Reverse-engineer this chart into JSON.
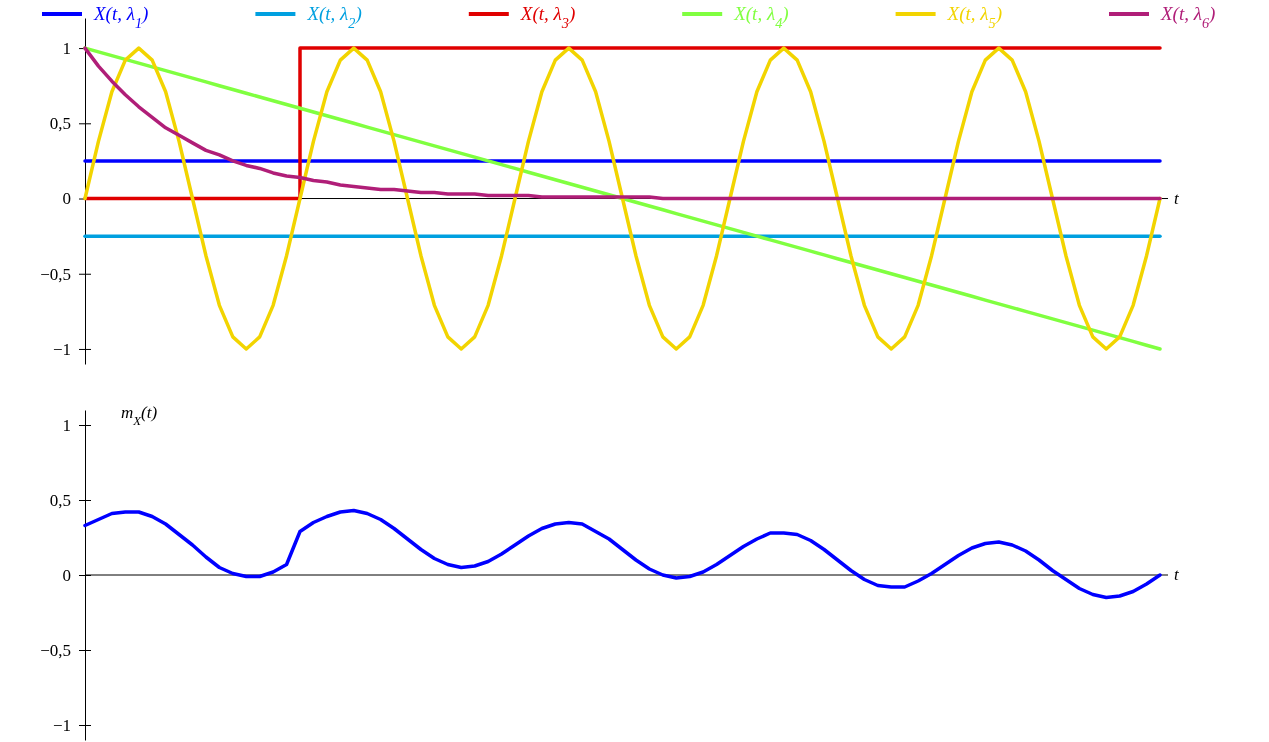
{
  "chart_data": [
    {
      "type": "line",
      "ylim": [
        -1.1,
        1.2
      ],
      "xlabel": "t",
      "tick_labels": "y",
      "legend": "top",
      "categories": [
        null,
        null,
        null,
        null,
        null,
        null,
        null,
        null,
        null,
        null,
        null,
        null,
        null,
        null,
        null,
        null,
        null,
        null,
        null,
        null,
        null,
        null,
        null,
        null,
        null,
        null,
        null,
        null,
        null,
        null,
        null,
        null,
        null,
        null,
        null,
        null,
        null,
        null,
        null,
        null,
        null,
        null,
        null,
        null,
        null,
        null,
        null,
        null,
        null,
        null,
        null,
        null,
        null,
        null,
        null,
        null,
        null,
        null,
        null,
        null,
        null,
        null,
        null,
        null,
        null,
        null,
        null,
        null,
        null,
        null,
        null,
        null,
        null,
        null,
        null,
        null,
        null,
        null,
        null,
        null,
        null
      ],
      "yticks": [
        {
          "value": -1,
          "label": "−1"
        },
        {
          "value": -0.5,
          "label": "−0,5"
        },
        {
          "value": 0,
          "label": "0"
        },
        {
          "value": 0.5,
          "label": "0,5"
        },
        {
          "value": 1,
          "label": "1"
        }
      ],
      "series": [
        {
          "name": "X(t, λ$_{1}$)",
          "color": "#0000ff",
          "values": [
            0.25,
            0.25,
            0.25,
            0.25,
            0.25,
            0.25,
            0.25,
            0.25,
            0.25,
            0.25,
            0.25,
            0.25,
            0.25,
            0.25,
            0.25,
            0.25,
            0.25,
            0.25,
            0.25,
            0.25,
            0.25,
            0.25,
            0.25,
            0.25,
            0.25,
            0.25,
            0.25,
            0.25,
            0.25,
            0.25,
            0.25,
            0.25,
            0.25,
            0.25,
            0.25,
            0.25,
            0.25,
            0.25,
            0.25,
            0.25,
            0.25,
            0.25,
            0.25,
            0.25,
            0.25,
            0.25,
            0.25,
            0.25,
            0.25,
            0.25,
            0.25,
            0.25,
            0.25,
            0.25,
            0.25,
            0.25,
            0.25,
            0.25,
            0.25,
            0.25,
            0.25,
            0.25,
            0.25,
            0.25,
            0.25,
            0.25,
            0.25,
            0.25,
            0.25,
            0.25,
            0.25,
            0.25,
            0.25,
            0.25,
            0.25,
            0.25,
            0.25,
            0.25,
            0.25,
            0.25,
            0.25
          ]
        },
        {
          "name": "X(t, λ$_{2}$)",
          "color": "#00a0e0",
          "values": [
            -0.25,
            -0.25,
            -0.25,
            -0.25,
            -0.25,
            -0.25,
            -0.25,
            -0.25,
            -0.25,
            -0.25,
            -0.25,
            -0.25,
            -0.25,
            -0.25,
            -0.25,
            -0.25,
            -0.25,
            -0.25,
            -0.25,
            -0.25,
            -0.25,
            -0.25,
            -0.25,
            -0.25,
            -0.25,
            -0.25,
            -0.25,
            -0.25,
            -0.25,
            -0.25,
            -0.25,
            -0.25,
            -0.25,
            -0.25,
            -0.25,
            -0.25,
            -0.25,
            -0.25,
            -0.25,
            -0.25,
            -0.25,
            -0.25,
            -0.25,
            -0.25,
            -0.25,
            -0.25,
            -0.25,
            -0.25,
            -0.25,
            -0.25,
            -0.25,
            -0.25,
            -0.25,
            -0.25,
            -0.25,
            -0.25,
            -0.25,
            -0.25,
            -0.25,
            -0.25,
            -0.25,
            -0.25,
            -0.25,
            -0.25,
            -0.25,
            -0.25,
            -0.25,
            -0.25,
            -0.25,
            -0.25,
            -0.25,
            -0.25,
            -0.25,
            -0.25,
            -0.25,
            -0.25,
            -0.25,
            -0.25,
            -0.25,
            -0.25,
            -0.25
          ]
        },
        {
          "name": "X(t, λ$_{3}$)",
          "color": "#e00000",
          "type": "step",
          "values": [
            0,
            0,
            0,
            0,
            0,
            0,
            0,
            0,
            0,
            0,
            0,
            0,
            0,
            0,
            0,
            0,
            1,
            1,
            1,
            1,
            1,
            1,
            1,
            1,
            1,
            1,
            1,
            1,
            1,
            1,
            1,
            1,
            1,
            1,
            1,
            1,
            1,
            1,
            1,
            1,
            1,
            1,
            1,
            1,
            1,
            1,
            1,
            1,
            1,
            1,
            1,
            1,
            1,
            1,
            1,
            1,
            1,
            1,
            1,
            1,
            1,
            1,
            1,
            1,
            1,
            1,
            1,
            1,
            1,
            1,
            1,
            1,
            1,
            1,
            1,
            1,
            1,
            1,
            1,
            1,
            1
          ]
        },
        {
          "name": "X(t, λ$_{4}$)",
          "color": "#80ff40",
          "values": [
            1,
            0.975,
            0.95,
            0.925,
            0.9,
            0.875,
            0.85,
            0.825,
            0.8,
            0.775,
            0.75,
            0.725,
            0.7,
            0.675,
            0.65,
            0.625,
            0.6,
            0.575,
            0.55,
            0.525,
            0.5,
            0.475,
            0.45,
            0.425,
            0.4,
            0.375,
            0.35,
            0.325,
            0.3,
            0.275,
            0.25,
            0.225,
            0.2,
            0.175,
            0.15,
            0.125,
            0.1,
            0.075,
            0.05,
            0.025,
            0,
            -0.025,
            -0.05,
            -0.075,
            -0.1,
            -0.125,
            -0.15,
            -0.175,
            -0.2,
            -0.225,
            -0.25,
            -0.275,
            -0.3,
            -0.325,
            -0.35,
            -0.375,
            -0.4,
            -0.425,
            -0.45,
            -0.475,
            -0.5,
            -0.525,
            -0.55,
            -0.575,
            -0.6,
            -0.625,
            -0.65,
            -0.675,
            -0.7,
            -0.725,
            -0.75,
            -0.775,
            -0.8,
            -0.825,
            -0.85,
            -0.875,
            -0.9,
            -0.925,
            -0.95,
            -0.975,
            -1
          ]
        },
        {
          "name": "X(t, λ$_{5}$)",
          "color": "#f2d400",
          "values": [
            0,
            0.38,
            0.71,
            0.92,
            1,
            0.92,
            0.71,
            0.38,
            0,
            -0.38,
            -0.71,
            -0.92,
            -1,
            -0.92,
            -0.71,
            -0.38,
            0,
            0.38,
            0.71,
            0.92,
            1,
            0.92,
            0.71,
            0.38,
            0,
            -0.38,
            -0.71,
            -0.92,
            -1,
            -0.92,
            -0.71,
            -0.38,
            0,
            0.38,
            0.71,
            0.92,
            1,
            0.92,
            0.71,
            0.38,
            0,
            -0.38,
            -0.71,
            -0.92,
            -1,
            -0.92,
            -0.71,
            -0.38,
            0,
            0.38,
            0.71,
            0.92,
            1,
            0.92,
            0.71,
            0.38,
            0,
            -0.38,
            -0.71,
            -0.92,
            -1,
            -0.92,
            -0.71,
            -0.38,
            0,
            0.38,
            0.71,
            0.92,
            1,
            0.92,
            0.71,
            0.38,
            0,
            -0.38,
            -0.71,
            -0.92,
            -1,
            -0.92,
            -0.71,
            -0.38,
            0
          ]
        },
        {
          "name": "X(t, λ$_{6}$)",
          "color": "#b01e78",
          "values": [
            1,
            0.88,
            0.78,
            0.69,
            0.61,
            0.54,
            0.47,
            0.42,
            0.37,
            0.32,
            0.29,
            0.25,
            0.22,
            0.2,
            0.17,
            0.15,
            0.14,
            0.12,
            0.11,
            0.09,
            0.08,
            0.07,
            0.06,
            0.06,
            0.05,
            0.04,
            0.04,
            0.03,
            0.03,
            0.03,
            0.02,
            0.02,
            0.02,
            0.02,
            0.01,
            0.01,
            0.01,
            0.01,
            0.01,
            0.01,
            0.01,
            0.01,
            0.01,
            0,
            0,
            0,
            0,
            0,
            0,
            0,
            0,
            0,
            0,
            0,
            0,
            0,
            0,
            0,
            0,
            0,
            0,
            0,
            0,
            0,
            0,
            0,
            0,
            0,
            0,
            0,
            0,
            0,
            0,
            0,
            0,
            0,
            0,
            0,
            0,
            0,
            0
          ]
        }
      ]
    },
    {
      "type": "line",
      "ylim": [
        -1.1,
        1.1
      ],
      "xlabel": "t",
      "ylabel": "m$_{X}$(t)",
      "tick_labels": "y",
      "categories": [
        null,
        null,
        null,
        null,
        null,
        null,
        null,
        null,
        null,
        null,
        null,
        null,
        null,
        null,
        null,
        null,
        null,
        null,
        null,
        null,
        null,
        null,
        null,
        null,
        null,
        null,
        null,
        null,
        null,
        null,
        null,
        null,
        null,
        null,
        null,
        null,
        null,
        null,
        null,
        null,
        null,
        null,
        null,
        null,
        null,
        null,
        null,
        null,
        null,
        null,
        null,
        null,
        null,
        null,
        null,
        null,
        null,
        null,
        null,
        null,
        null,
        null,
        null,
        null,
        null,
        null,
        null,
        null,
        null,
        null,
        null,
        null,
        null,
        null,
        null,
        null,
        null,
        null,
        null,
        null,
        null
      ],
      "yticks": [
        {
          "value": -1,
          "label": "−1"
        },
        {
          "value": -0.5,
          "label": "−0,5"
        },
        {
          "value": 0,
          "label": "0"
        },
        {
          "value": 0.5,
          "label": "0,5"
        },
        {
          "value": 1,
          "label": "1"
        }
      ],
      "series": [
        {
          "color": "#0000ff",
          "values": [
            0.33,
            0.37,
            0.41,
            0.42,
            0.42,
            0.39,
            0.34,
            0.27,
            0.2,
            0.12,
            0.05,
            0.01,
            -0.01,
            -0.01,
            0.02,
            0.07,
            0.29,
            0.35,
            0.39,
            0.42,
            0.43,
            0.41,
            0.37,
            0.31,
            0.24,
            0.17,
            0.11,
            0.07,
            0.05,
            0.06,
            0.09,
            0.14,
            0.2,
            0.26,
            0.31,
            0.34,
            0.35,
            0.34,
            0.29,
            0.24,
            0.17,
            0.1,
            0.04,
            0,
            -0.02,
            -0.01,
            0.02,
            0.07,
            0.13,
            0.19,
            0.24,
            0.28,
            0.28,
            0.27,
            0.23,
            0.17,
            0.1,
            0.03,
            -0.03,
            -0.07,
            -0.08,
            -0.08,
            -0.04,
            0.01,
            0.07,
            0.13,
            0.18,
            0.21,
            0.22,
            0.2,
            0.16,
            0.1,
            0.03,
            -0.03,
            -0.09,
            -0.13,
            -0.15,
            -0.14,
            -0.11,
            -0.06,
            0
          ]
        }
      ]
    }
  ]
}
